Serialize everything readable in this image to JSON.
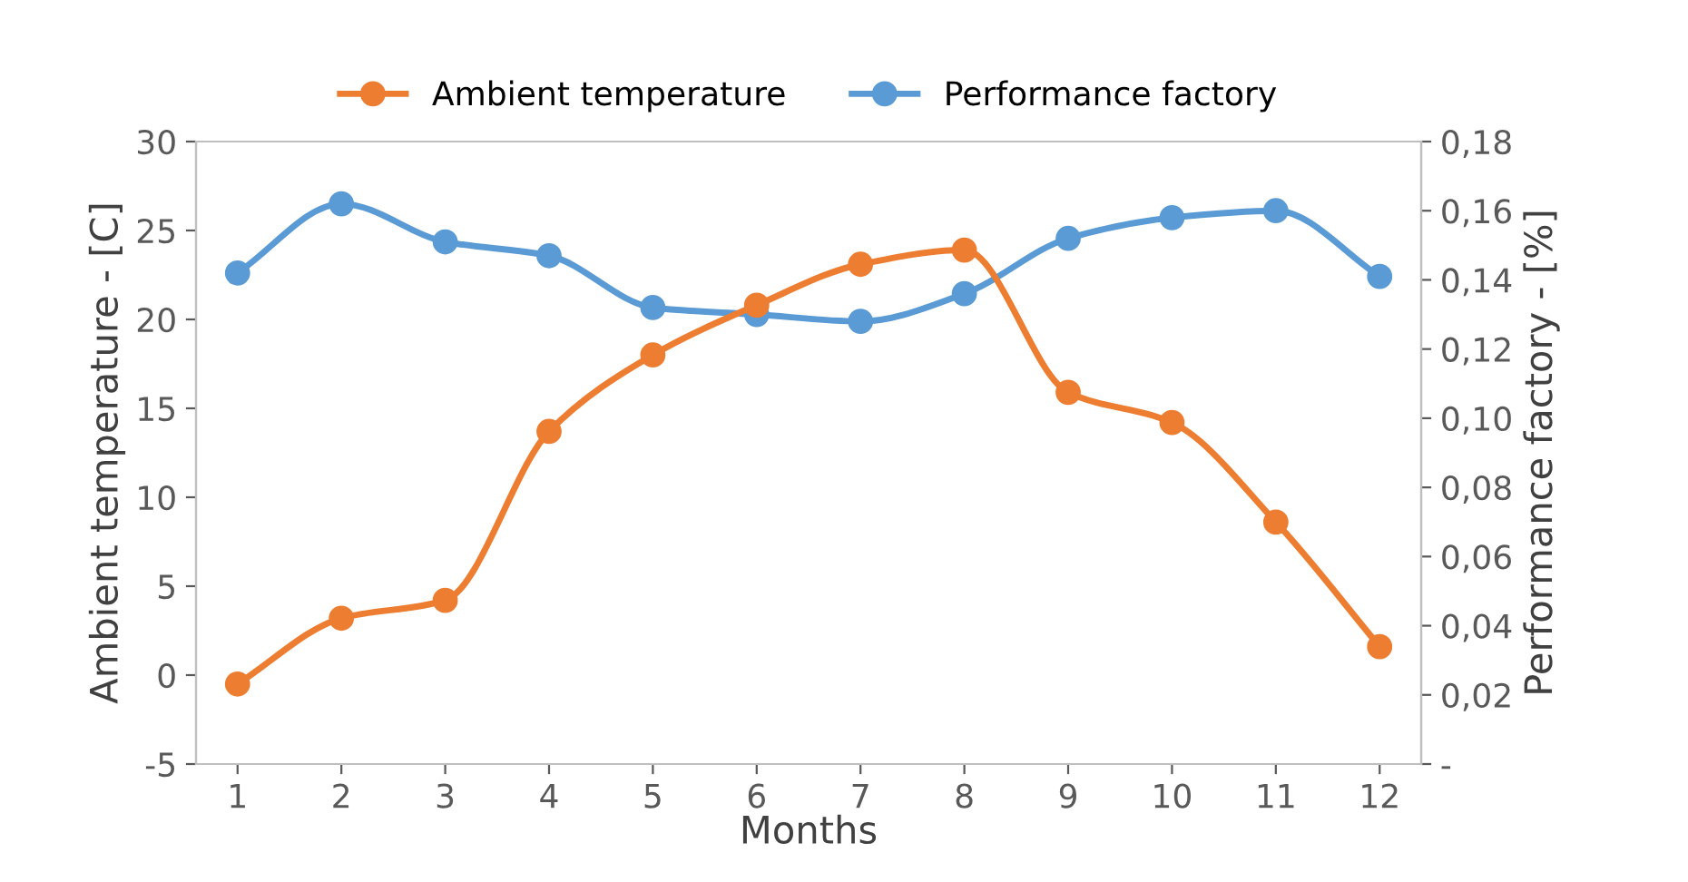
{
  "chart_data": {
    "type": "line",
    "xlabel": "Months",
    "ylabel": "Ambient temperature - [C]",
    "y2label": "Performance factory - [%]",
    "categories": [
      "1",
      "2",
      "3",
      "4",
      "5",
      "6",
      "7",
      "8",
      "9",
      "10",
      "11",
      "12"
    ],
    "series": [
      {
        "name": "Ambient temperature",
        "color": "#ed7d31",
        "values": [
          -0.5,
          3.2,
          4.2,
          13.7,
          18.0,
          20.8,
          23.1,
          23.9,
          15.9,
          14.2,
          8.6,
          1.6
        ]
      },
      {
        "name": "Performance factory",
        "color": "#5b9bd5",
        "axis": "y2",
        "values": [
          0.142,
          0.162,
          0.151,
          0.147,
          0.132,
          0.13,
          0.128,
          0.136,
          0.152,
          0.158,
          0.16,
          0.141
        ]
      }
    ],
    "ylim": [
      -5,
      30
    ],
    "yticks": [
      -5,
      0,
      5,
      10,
      15,
      20,
      25,
      30
    ],
    "y2lim": [
      0,
      0.18
    ],
    "y2ticks": [
      {
        "value": 0,
        "label": "-"
      },
      {
        "value": 0.02,
        "label": "0,02"
      },
      {
        "value": 0.04,
        "label": "0,04"
      },
      {
        "value": 0.06,
        "label": "0,06"
      },
      {
        "value": 0.08,
        "label": "0,08"
      },
      {
        "value": 0.1,
        "label": "0,10"
      },
      {
        "value": 0.12,
        "label": "0,12"
      },
      {
        "value": 0.14,
        "label": "0,14"
      },
      {
        "value": 0.16,
        "label": "0,16"
      },
      {
        "value": 0.18,
        "label": "0,18"
      }
    ],
    "marker": "circle",
    "line_style": "solid",
    "legend": "top",
    "grid": false
  }
}
